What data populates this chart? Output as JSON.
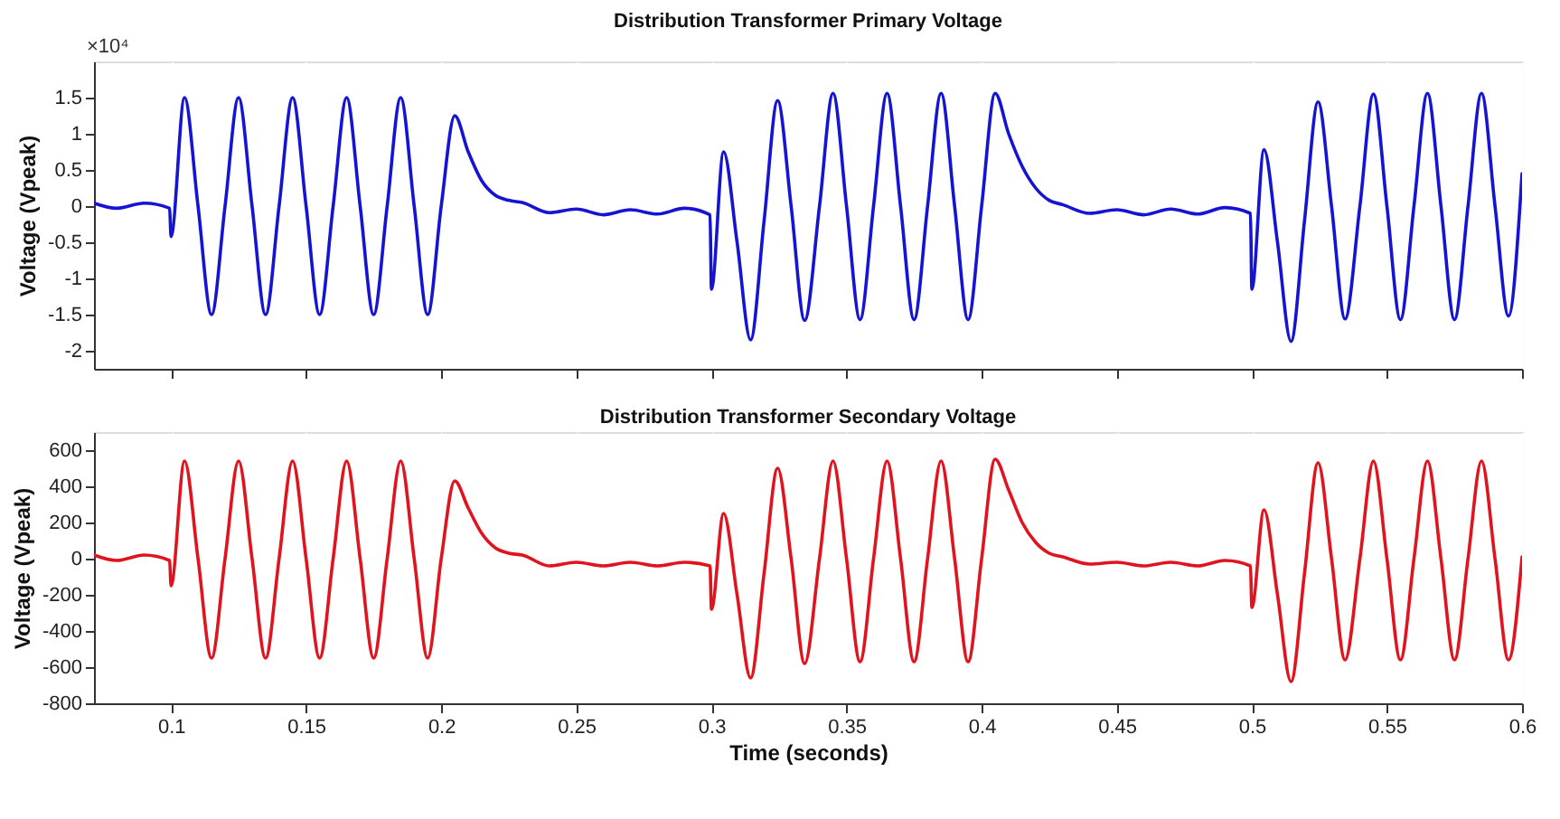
{
  "chart_data": [
    {
      "type": "line",
      "title": "Distribution Transformer Primary Voltage",
      "ylabel": "Voltage (Vpeak)",
      "annotations": [
        "×10⁴"
      ],
      "grid": true,
      "tick_labels": "y",
      "line_style": "solid",
      "marker": "none",
      "xlim": [
        0.0715,
        0.6
      ],
      "xticks": [
        0.1,
        0.15,
        0.2,
        0.25,
        0.3,
        0.35,
        0.4,
        0.45,
        0.5,
        0.55,
        0.6
      ],
      "ylim": [
        -2.25,
        2.0
      ],
      "yticks": [
        -2,
        -1.5,
        -1,
        -0.5,
        0,
        0.5,
        1,
        1.5
      ],
      "x": [
        0.0715,
        0.08,
        0.09,
        0.0995,
        0.1,
        0.105,
        0.11,
        0.115,
        0.12,
        0.125,
        0.13,
        0.135,
        0.14,
        0.145,
        0.15,
        0.155,
        0.16,
        0.165,
        0.17,
        0.175,
        0.18,
        0.185,
        0.19,
        0.195,
        0.2,
        0.205,
        0.21,
        0.215,
        0.22,
        0.225,
        0.23,
        0.24,
        0.25,
        0.26,
        0.27,
        0.28,
        0.29,
        0.2995,
        0.3,
        0.3045,
        0.3095,
        0.3145,
        0.3195,
        0.3245,
        0.3295,
        0.3345,
        0.34,
        0.345,
        0.35,
        0.355,
        0.36,
        0.365,
        0.37,
        0.375,
        0.38,
        0.385,
        0.39,
        0.395,
        0.4,
        0.405,
        0.41,
        0.415,
        0.42,
        0.425,
        0.43,
        0.44,
        0.45,
        0.46,
        0.47,
        0.48,
        0.49,
        0.4995,
        0.5,
        0.5045,
        0.5095,
        0.5145,
        0.5195,
        0.5245,
        0.5295,
        0.5345,
        0.54,
        0.545,
        0.55,
        0.555,
        0.56,
        0.565,
        0.57,
        0.575,
        0.58,
        0.585,
        0.59,
        0.595,
        0.6
      ],
      "series": [
        {
          "color": "#1414d2",
          "values": [
            0.04,
            -0.03,
            0.04,
            -0.03,
            -0.42,
            1.5,
            0,
            -1.5,
            0,
            1.5,
            0,
            -1.5,
            0,
            1.5,
            0,
            -1.5,
            0,
            1.5,
            0,
            -1.5,
            0,
            1.5,
            0,
            -1.5,
            0,
            1.25,
            0.75,
            0.35,
            0.15,
            0.08,
            0.05,
            -0.09,
            -0.04,
            -0.12,
            -0.05,
            -0.11,
            -0.03,
            -0.12,
            -1.15,
            0.75,
            -0.5,
            -1.85,
            -0.2,
            1.46,
            0,
            -1.58,
            0,
            1.56,
            0,
            -1.57,
            0,
            1.56,
            0,
            -1.57,
            0,
            1.56,
            0,
            -1.57,
            0,
            1.56,
            1,
            0.55,
            0.25,
            0.08,
            0.02,
            -0.1,
            -0.05,
            -0.12,
            -0.04,
            -0.11,
            -0.02,
            -0.1,
            -1.15,
            0.78,
            -0.5,
            -1.87,
            -0.2,
            1.44,
            0,
            -1.56,
            0,
            1.55,
            0,
            -1.57,
            0,
            1.56,
            0,
            -1.57,
            0,
            1.56,
            0,
            -1.52,
            0.45
          ]
        }
      ]
    },
    {
      "type": "line",
      "title": "Distribution Transformer Secondary Voltage",
      "ylabel": "Voltage (Vpeak)",
      "xlabel": "Time (seconds)",
      "grid": true,
      "line_style": "solid",
      "marker": "none",
      "xlim": [
        0.0715,
        0.6
      ],
      "xticks": [
        0.1,
        0.15,
        0.2,
        0.25,
        0.3,
        0.35,
        0.4,
        0.45,
        0.5,
        0.55,
        0.6
      ],
      "ylim": [
        -800,
        700
      ],
      "yticks": [
        -800,
        -600,
        -400,
        -200,
        0,
        200,
        400,
        600
      ],
      "x": [
        0.0715,
        0.08,
        0.09,
        0.0995,
        0.1,
        0.105,
        0.11,
        0.115,
        0.12,
        0.125,
        0.13,
        0.135,
        0.14,
        0.145,
        0.15,
        0.155,
        0.16,
        0.165,
        0.17,
        0.175,
        0.18,
        0.185,
        0.19,
        0.195,
        0.2,
        0.205,
        0.21,
        0.215,
        0.22,
        0.225,
        0.23,
        0.24,
        0.25,
        0.26,
        0.27,
        0.28,
        0.29,
        0.2995,
        0.3,
        0.3045,
        0.3095,
        0.3145,
        0.3195,
        0.3245,
        0.3295,
        0.3345,
        0.34,
        0.345,
        0.35,
        0.355,
        0.36,
        0.365,
        0.37,
        0.375,
        0.38,
        0.385,
        0.39,
        0.395,
        0.4,
        0.405,
        0.41,
        0.415,
        0.42,
        0.425,
        0.43,
        0.44,
        0.45,
        0.46,
        0.47,
        0.48,
        0.49,
        0.4995,
        0.5,
        0.5045,
        0.5095,
        0.5145,
        0.5195,
        0.5245,
        0.5295,
        0.5345,
        0.54,
        0.545,
        0.55,
        0.555,
        0.56,
        0.565,
        0.57,
        0.575,
        0.58,
        0.585,
        0.59,
        0.595,
        0.6
      ],
      "series": [
        {
          "color": "#e0141e",
          "values": [
            20,
            -10,
            20,
            -10,
            -150,
            540,
            0,
            -550,
            0,
            540,
            0,
            -550,
            0,
            540,
            0,
            -550,
            0,
            540,
            0,
            -550,
            0,
            540,
            0,
            -550,
            0,
            430,
            280,
            140,
            60,
            30,
            20,
            -40,
            -20,
            -40,
            -20,
            -40,
            -20,
            -40,
            -280,
            250,
            -200,
            -660,
            -80,
            500,
            0,
            -580,
            0,
            540,
            0,
            -570,
            0,
            540,
            0,
            -570,
            0,
            540,
            0,
            -570,
            0,
            550,
            380,
            200,
            90,
            30,
            10,
            -30,
            -20,
            -40,
            -20,
            -40,
            -10,
            -40,
            -270,
            270,
            -200,
            -680,
            -80,
            530,
            0,
            -560,
            0,
            540,
            0,
            -560,
            0,
            540,
            0,
            -560,
            0,
            540,
            0,
            -560,
            10
          ]
        }
      ]
    }
  ]
}
